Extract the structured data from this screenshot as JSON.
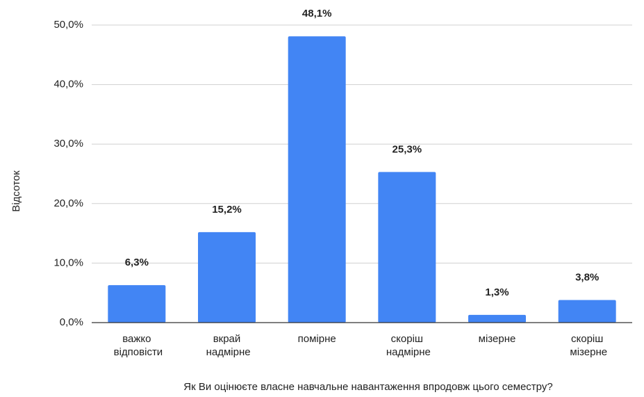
{
  "chart_data": {
    "type": "bar",
    "x_label": "Як Ви оцінюєте власне навчальне навантаження впродовж цього семестру?",
    "y_label": "Відсоток",
    "categories": [
      "важко\nвідповісти",
      "вкрай\nнадмірне",
      "помірне",
      "скоріш\nнадмірне",
      "мізерне",
      "скоріш\nмізерне"
    ],
    "values": [
      6.3,
      15.2,
      48.1,
      25.3,
      1.3,
      3.8
    ],
    "value_labels": [
      "6,3%",
      "15,2%",
      "48,1%",
      "25,3%",
      "1,3%",
      "3,8%"
    ],
    "color": "#4285f4",
    "ylim": [
      0,
      50
    ],
    "yticks": [
      {
        "value": 0,
        "label": "0,0%"
      },
      {
        "value": 10,
        "label": "10,0%"
      },
      {
        "value": 20,
        "label": "20,0%"
      },
      {
        "value": 30,
        "label": "30,0%"
      },
      {
        "value": 40,
        "label": "40,0%"
      },
      {
        "value": 50,
        "label": "50,0%"
      }
    ],
    "grid": true
  }
}
